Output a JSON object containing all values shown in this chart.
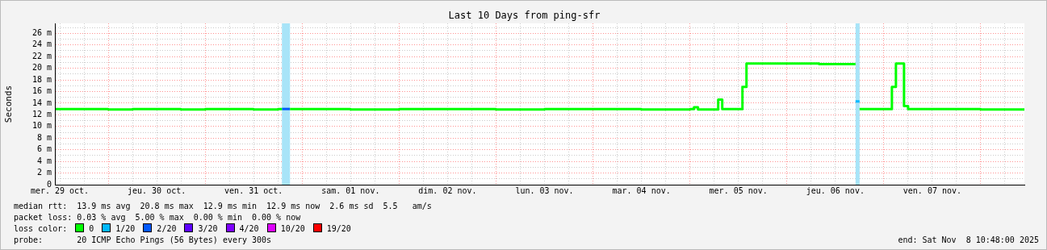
{
  "chart_data": {
    "type": "step",
    "title": "Last 10 Days from ping-sfr",
    "ylabel": "Seconds",
    "legend_title": "loss color:",
    "legend": "bottom",
    "grid": true,
    "xlim": [
      "2025-10-29T10:48",
      "2025-11-08T10:48"
    ],
    "xticks": [
      {
        "value": "2025-10-29T12:00",
        "label": "mer. 29 oct."
      },
      {
        "value": "2025-10-29T18:00",
        "label": null
      },
      {
        "value": "2025-10-30T00:00",
        "label": null
      },
      {
        "value": "2025-10-30T06:00",
        "label": null
      },
      {
        "value": "2025-10-30T12:00",
        "label": "jeu. 30 oct."
      },
      {
        "value": "2025-10-30T18:00",
        "label": null
      },
      {
        "value": "2025-10-31T00:00",
        "label": null
      },
      {
        "value": "2025-10-31T06:00",
        "label": null
      },
      {
        "value": "2025-10-31T12:00",
        "label": "ven. 31 oct."
      },
      {
        "value": "2025-10-31T18:00",
        "label": null
      },
      {
        "value": "2025-11-01T00:00",
        "label": null
      },
      {
        "value": "2025-11-01T06:00",
        "label": null
      },
      {
        "value": "2025-11-01T12:00",
        "label": "sam. 01 nov."
      },
      {
        "value": "2025-11-01T18:00",
        "label": null
      },
      {
        "value": "2025-11-02T00:00",
        "label": null
      },
      {
        "value": "2025-11-02T06:00",
        "label": null
      },
      {
        "value": "2025-11-02T12:00",
        "label": "dim. 02 nov."
      },
      {
        "value": "2025-11-02T18:00",
        "label": null
      },
      {
        "value": "2025-11-03T00:00",
        "label": null
      },
      {
        "value": "2025-11-03T06:00",
        "label": null
      },
      {
        "value": "2025-11-03T12:00",
        "label": "lun. 03 nov."
      },
      {
        "value": "2025-11-03T18:00",
        "label": null
      },
      {
        "value": "2025-11-04T00:00",
        "label": null
      },
      {
        "value": "2025-11-04T06:00",
        "label": null
      },
      {
        "value": "2025-11-04T12:00",
        "label": "mar. 04 nov."
      },
      {
        "value": "2025-11-04T18:00",
        "label": null
      },
      {
        "value": "2025-11-05T00:00",
        "label": null
      },
      {
        "value": "2025-11-05T06:00",
        "label": null
      },
      {
        "value": "2025-11-05T12:00",
        "label": "mer. 05 nov."
      },
      {
        "value": "2025-11-05T18:00",
        "label": null
      },
      {
        "value": "2025-11-06T00:00",
        "label": null
      },
      {
        "value": "2025-11-06T06:00",
        "label": null
      },
      {
        "value": "2025-11-06T12:00",
        "label": "jeu. 06 nov."
      },
      {
        "value": "2025-11-06T18:00",
        "label": null
      },
      {
        "value": "2025-11-07T00:00",
        "label": null
      },
      {
        "value": "2025-11-07T06:00",
        "label": null
      },
      {
        "value": "2025-11-07T12:00",
        "label": "ven. 07 nov."
      },
      {
        "value": "2025-11-07T18:00",
        "label": null
      },
      {
        "value": "2025-11-08T00:00",
        "label": null
      },
      {
        "value": "2025-11-08T06:00",
        "label": null
      }
    ],
    "ylim": [
      0,
      27.7
    ],
    "yticks": [
      0,
      {
        "value": 1,
        "label": null
      },
      {
        "value": 2,
        "label": "2 m"
      },
      {
        "value": 3,
        "label": null
      },
      {
        "value": 4,
        "label": "4 m"
      },
      {
        "value": 5,
        "label": null
      },
      {
        "value": 6,
        "label": "6 m"
      },
      {
        "value": 7,
        "label": null
      },
      {
        "value": 8,
        "label": "8 m"
      },
      {
        "value": 9,
        "label": null
      },
      {
        "value": 10,
        "label": "10 m"
      },
      {
        "value": 11,
        "label": null
      },
      {
        "value": 12,
        "label": "12 m"
      },
      {
        "value": 13,
        "label": null
      },
      {
        "value": 14,
        "label": "14 m"
      },
      {
        "value": 15,
        "label": null
      },
      {
        "value": 16,
        "label": "16 m"
      },
      {
        "value": 17,
        "label": null
      },
      {
        "value": 18,
        "label": "18 m"
      },
      {
        "value": 19,
        "label": null
      },
      {
        "value": 20,
        "label": "20 m"
      },
      {
        "value": 21,
        "label": null
      },
      {
        "value": 22,
        "label": "22 m"
      },
      {
        "value": 23,
        "label": null
      },
      {
        "value": 24,
        "label": "24 m"
      },
      {
        "value": 25,
        "label": null
      },
      {
        "value": 26,
        "label": "26 m"
      },
      {
        "value": 27,
        "label": null
      }
    ],
    "series": [
      {
        "name": "0",
        "color": "#00ff00",
        "x": [
          "2025-10-29T11:00",
          "2025-10-29T18:00",
          "2025-10-30T00:00",
          "2025-10-30T06:00",
          "2025-10-30T12:00",
          "2025-10-30T18:00",
          "2025-10-31T00:00",
          "2025-10-31T06:00",
          "2025-10-31T12:00",
          "2025-10-31T18:00",
          "2025-10-31T19:00",
          "2025-10-31T19:30",
          "2025-10-31T21:00",
          "2025-11-01T03:00",
          "2025-11-01T12:00",
          "2025-11-02T00:00",
          "2025-11-02T12:00",
          "2025-11-03T00:00",
          "2025-11-03T12:00",
          "2025-11-04T00:00",
          "2025-11-04T12:00",
          "2025-11-05T00:00",
          "2025-11-05T01:00",
          "2025-11-05T02:00",
          "2025-11-05T07:00",
          "2025-11-05T08:00",
          "2025-11-05T13:00",
          "2025-11-05T14:00",
          "2025-11-05T22:00",
          "2025-11-06T08:00",
          "2025-11-06T16:00",
          "2025-11-06T17:00",
          "2025-11-06T17:30",
          "2025-11-06T18:00",
          "2025-11-07T02:00",
          "2025-11-07T03:00",
          "2025-11-07T05:00",
          "2025-11-07T06:00",
          "2025-11-07T14:00",
          "2025-11-08T00:00",
          "2025-11-08T10:48"
        ],
        "values": [
          13.0,
          13.0,
          12.9,
          13.0,
          13.0,
          12.9,
          13.0,
          13.0,
          12.9,
          13.0,
          13.0,
          null,
          13.0,
          13.0,
          12.9,
          13.0,
          13.0,
          12.9,
          13.0,
          13.0,
          12.9,
          13.0,
          13.3,
          12.9,
          14.6,
          13.0,
          16.8,
          20.8,
          20.8,
          20.7,
          20.7,
          20.7,
          null,
          13.0,
          16.8,
          20.8,
          13.5,
          13.0,
          13.0,
          12.9,
          12.9
        ]
      },
      {
        "name": "1/20",
        "color": "#00b8ff",
        "x": [
          "2025-11-06T17:00",
          "2025-11-06T18:00"
        ],
        "values": [
          14.3,
          14.3
        ]
      },
      {
        "name": "2/20",
        "color": "#0059ff",
        "x": [
          "2025-10-31T19:00",
          "2025-10-31T21:00"
        ],
        "values": [
          13.0,
          13.0
        ]
      },
      {
        "name": "3/20",
        "color": "#5e00ff"
      },
      {
        "name": "4/20",
        "color": "#7e00ff"
      },
      {
        "name": "10/20",
        "color": "#dd00ff"
      },
      {
        "name": "19/20",
        "color": "#ff0000"
      }
    ],
    "bands": [
      {
        "axis": "x",
        "from": "2025-10-31T19:00",
        "to": "2025-10-31T21:00",
        "color": "#a8e4f8"
      },
      {
        "axis": "x",
        "from": "2025-11-06T17:00",
        "to": "2025-11-06T18:00",
        "color": "#a8e4f8"
      }
    ],
    "annotations": [
      "median rtt:  13.9 ms avg  20.8 ms max  12.9 ms min  12.9 ms now  2.6 ms sd  5.5   am/s",
      "packet loss: 0.03 % avg  5.00 % max  0.00 % min  0.00 % now",
      "probe:       20 ICMP Echo Pings (56 Bytes) every 300s",
      "end: Sat Nov  8 10:48:00 2025"
    ]
  }
}
